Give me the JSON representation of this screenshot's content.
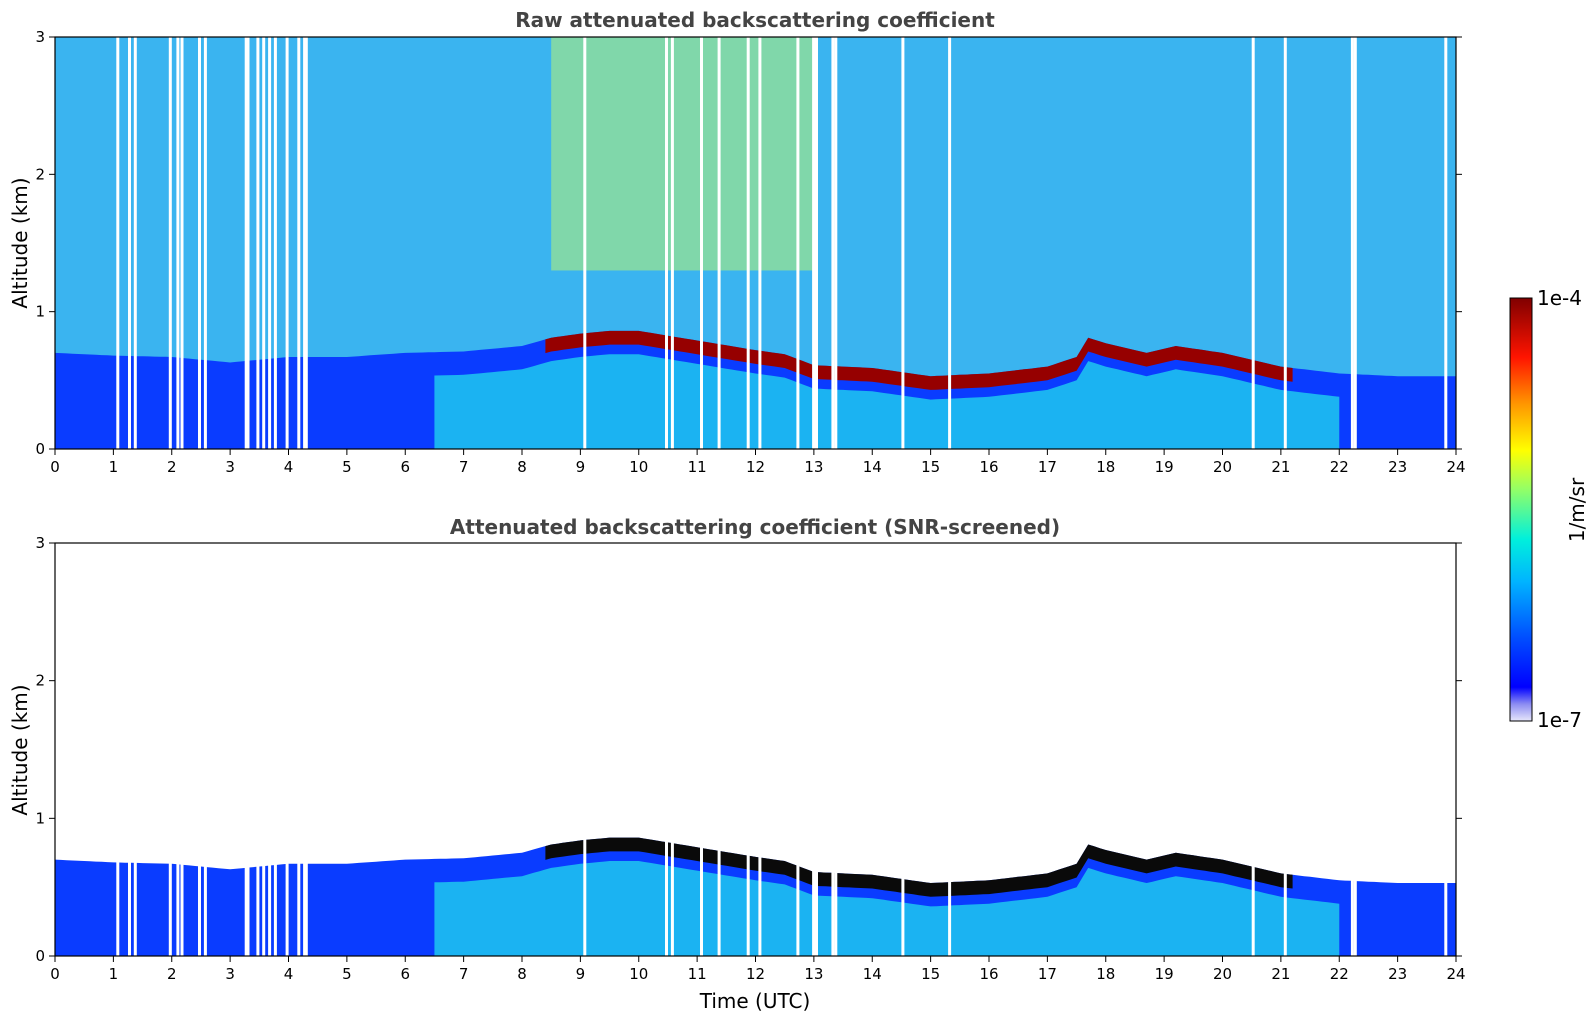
{
  "chart_data": [
    {
      "type": "heatmap",
      "title": "Raw attenuated backscattering coefficient",
      "xlabel": "",
      "ylabel": "Altitude (km)",
      "xlim": [
        0,
        24
      ],
      "ylim": [
        0,
        3
      ],
      "xticks": [
        "0",
        "1",
        "2",
        "3",
        "4",
        "5",
        "6",
        "7",
        "8",
        "9",
        "10",
        "11",
        "12",
        "13",
        "14",
        "15",
        "16",
        "17",
        "18",
        "19",
        "20",
        "21",
        "22",
        "23",
        "24"
      ],
      "yticks": [
        "0",
        "1",
        "2",
        "3"
      ],
      "screened": false
    },
    {
      "type": "heatmap",
      "title": "Attenuated backscattering coefficient (SNR-screened)",
      "xlabel": "Time (UTC)",
      "ylabel": "Altitude (km)",
      "xlim": [
        0,
        24
      ],
      "ylim": [
        0,
        3
      ],
      "xticks": [
        "0",
        "1",
        "2",
        "3",
        "4",
        "5",
        "6",
        "7",
        "8",
        "9",
        "10",
        "11",
        "12",
        "13",
        "14",
        "15",
        "16",
        "17",
        "18",
        "19",
        "20",
        "21",
        "22",
        "23",
        "24"
      ],
      "yticks": [
        "0",
        "1",
        "2",
        "3"
      ],
      "screened": true
    }
  ],
  "colorbar": {
    "max_label": "1e-4",
    "min_label": "1e-7",
    "unit_label": "1/m/sr"
  },
  "layer_height_km": [
    [
      0,
      0.65
    ],
    [
      1,
      0.63
    ],
    [
      2,
      0.62
    ],
    [
      3,
      0.58
    ],
    [
      4,
      0.62
    ],
    [
      5,
      0.62
    ],
    [
      6,
      0.65
    ],
    [
      7,
      0.66
    ],
    [
      8,
      0.7
    ],
    [
      8.5,
      0.76
    ],
    [
      9,
      0.79
    ],
    [
      9.5,
      0.81
    ],
    [
      10,
      0.81
    ],
    [
      11,
      0.74
    ],
    [
      12,
      0.67
    ],
    [
      12.5,
      0.64
    ],
    [
      13,
      0.56
    ],
    [
      14,
      0.54
    ],
    [
      15,
      0.48
    ],
    [
      16,
      0.5
    ],
    [
      17,
      0.55
    ],
    [
      17.5,
      0.62
    ],
    [
      17.7,
      0.76
    ],
    [
      18,
      0.72
    ],
    [
      18.7,
      0.65
    ],
    [
      19.2,
      0.7
    ],
    [
      20,
      0.65
    ],
    [
      21,
      0.55
    ],
    [
      22,
      0.5
    ],
    [
      23,
      0.48
    ],
    [
      24,
      0.48
    ]
  ],
  "cloud_segment_h": [
    8.4,
    21.2
  ],
  "gap_times_h": [
    1.05,
    1.25,
    1.35,
    1.95,
    2.08,
    2.15,
    2.45,
    2.55,
    3.25,
    3.28,
    3.45,
    3.55,
    3.65,
    3.75,
    3.95,
    4.15,
    4.25,
    4.28,
    9.05,
    10.45,
    10.55,
    11.05,
    11.35,
    11.85,
    12.05,
    12.7,
    12.97,
    13.02,
    13.3,
    13.35,
    14.5,
    15.3,
    20.5,
    21.05,
    22.2,
    22.25,
    23.8
  ]
}
